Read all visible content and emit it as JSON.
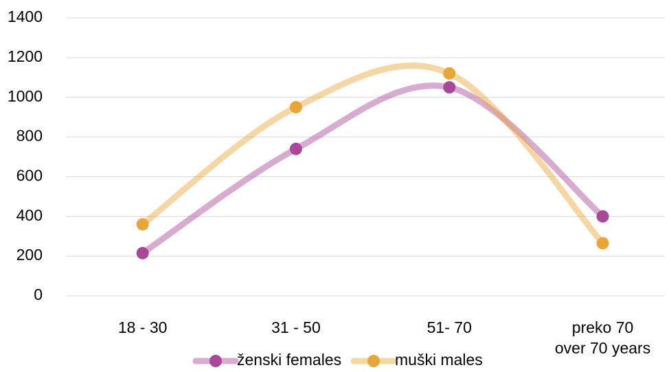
{
  "chart_data": {
    "type": "line",
    "categories": [
      "18 - 30",
      "31 - 50",
      "51- 70",
      "preko 70\nover 70 years"
    ],
    "series": [
      {
        "name": "ženski females",
        "color": "#a8489a",
        "values": [
          215,
          740,
          1050,
          400
        ]
      },
      {
        "name": "muški males",
        "color": "#e8a63a",
        "values": [
          360,
          950,
          1120,
          265
        ]
      }
    ],
    "ylim": [
      0,
      1400
    ],
    "yticks": [
      0,
      200,
      400,
      600,
      800,
      1000,
      1200,
      1400
    ],
    "grid": true,
    "smooth": true,
    "legend": "bottom"
  }
}
